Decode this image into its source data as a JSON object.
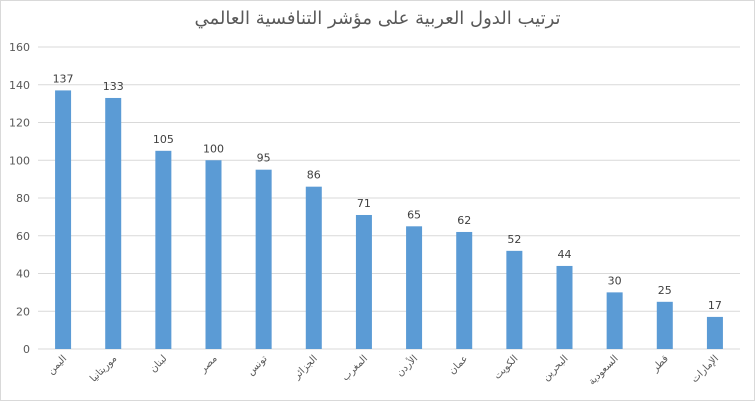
{
  "chart_data": {
    "type": "bar",
    "title": "ترتيب الدول العربية على مؤشر التنافسية العالمي",
    "categories": [
      "اليمن",
      "موريتانيا",
      "لبنان",
      "مصر",
      "تونس",
      "الجزائر",
      "المغرب",
      "الأردن",
      "عمان",
      "الكويت",
      "البحرين",
      "السعودية",
      "قطر",
      "الإمارات"
    ],
    "values": [
      137,
      133,
      105,
      100,
      95,
      86,
      71,
      65,
      62,
      52,
      44,
      30,
      25,
      17
    ],
    "ylim": [
      0,
      160
    ],
    "yticks": [
      0,
      20,
      40,
      60,
      80,
      100,
      120,
      140,
      160
    ],
    "grid": true,
    "legend": "none",
    "bar_color": "#5b9bd5",
    "grid_color": "#d9d9d9"
  }
}
